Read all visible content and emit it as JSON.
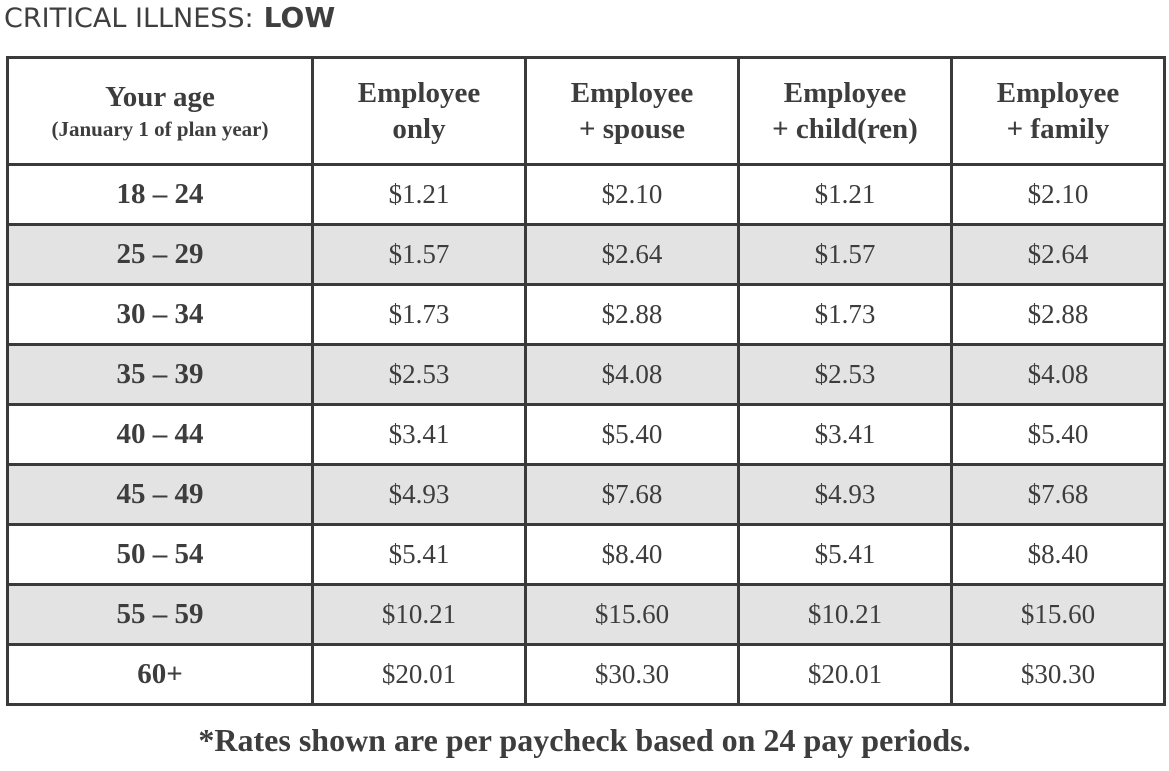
{
  "title": {
    "prefix": "CRITICAL ILLNESS:",
    "level": "LOW"
  },
  "table": {
    "headers": [
      {
        "line1": "Your age",
        "line2": "(January 1 of plan year)"
      },
      {
        "line1": "Employee",
        "line2": "only"
      },
      {
        "line1": "Employee",
        "line2": "+ spouse"
      },
      {
        "line1": "Employee",
        "line2": "+ child(ren)"
      },
      {
        "line1": "Employee",
        "line2": "+ family"
      }
    ],
    "rows": [
      {
        "age": "18 – 24",
        "emp": "$1.21",
        "spouse": "$2.10",
        "child": "$1.21",
        "family": "$2.10"
      },
      {
        "age": "25 – 29",
        "emp": "$1.57",
        "spouse": "$2.64",
        "child": "$1.57",
        "family": "$2.64"
      },
      {
        "age": "30 – 34",
        "emp": "$1.73",
        "spouse": "$2.88",
        "child": "$1.73",
        "family": "$2.88"
      },
      {
        "age": "35 – 39",
        "emp": "$2.53",
        "spouse": "$4.08",
        "child": "$2.53",
        "family": "$4.08"
      },
      {
        "age": "40 – 44",
        "emp": "$3.41",
        "spouse": "$5.40",
        "child": "$3.41",
        "family": "$5.40"
      },
      {
        "age": "45 – 49",
        "emp": "$4.93",
        "spouse": "$7.68",
        "child": "$4.93",
        "family": "$7.68"
      },
      {
        "age": "50 – 54",
        "emp": "$5.41",
        "spouse": "$8.40",
        "child": "$5.41",
        "family": "$8.40"
      },
      {
        "age": "55 – 59",
        "emp": "$10.21",
        "spouse": "$15.60",
        "child": "$10.21",
        "family": "$15.60"
      },
      {
        "age": "60+",
        "emp": "$20.01",
        "spouse": "$30.30",
        "child": "$20.01",
        "family": "$30.30"
      }
    ]
  },
  "footnote": "*Rates shown are per paycheck based on 24 pay periods.",
  "colors": {
    "border": "#3a3a3a",
    "shaded_row": "#e3e3e3",
    "text": "#3d3d3d"
  }
}
